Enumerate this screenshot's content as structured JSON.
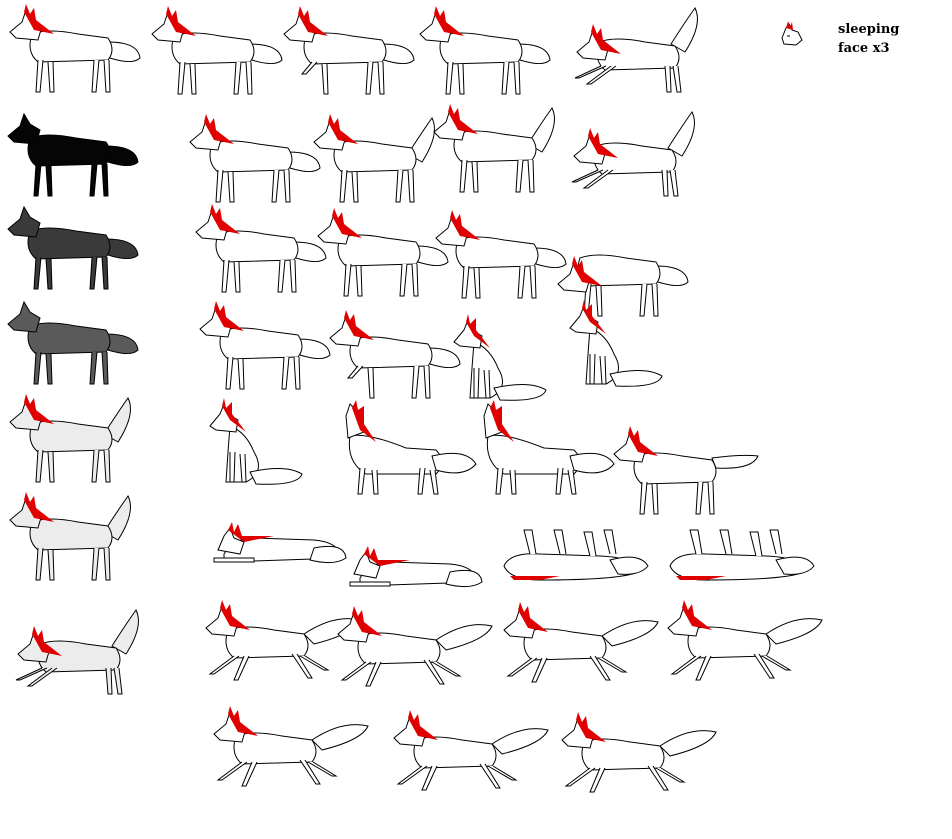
{
  "note": {
    "line1": "sleeping",
    "line2": "face x3"
  },
  "colors": {
    "outline": "#000000",
    "mane": "#e00000",
    "fill_white": "#ffffff",
    "fill_light": "#ececec",
    "fill_mid": "#5a5a5a",
    "fill_dark": "#3a3a3a",
    "fill_black": "#050505"
  },
  "sprites": [
    {
      "pose": "stand",
      "fill": "#ffffff",
      "mane": true
    },
    {
      "pose": "stand",
      "fill": "#ffffff",
      "mane": true
    },
    {
      "pose": "step",
      "fill": "#ffffff",
      "mane": true
    },
    {
      "pose": "stand",
      "fill": "#ffffff",
      "mane": true
    },
    {
      "pose": "play",
      "fill": "#ffffff",
      "mane": true
    },
    {
      "pose": "stand",
      "fill": "#050505",
      "mane": false
    },
    {
      "pose": "stand",
      "fill": "#ffffff",
      "mane": true
    },
    {
      "pose": "tailup",
      "fill": "#ffffff",
      "mane": true
    },
    {
      "pose": "tailup",
      "fill": "#ffffff",
      "mane": true
    },
    {
      "pose": "play",
      "fill": "#ffffff",
      "mane": true
    },
    {
      "pose": "stand",
      "fill": "#3a3a3a",
      "mane": false
    },
    {
      "pose": "stand",
      "fill": "#ffffff",
      "mane": true
    },
    {
      "pose": "stand",
      "fill": "#ffffff",
      "mane": true
    },
    {
      "pose": "stand",
      "fill": "#ffffff",
      "mane": true
    },
    {
      "pose": "sniff",
      "fill": "#ffffff",
      "mane": true
    },
    {
      "pose": "stand",
      "fill": "#5a5a5a",
      "mane": false
    },
    {
      "pose": "stand",
      "fill": "#ffffff",
      "mane": true
    },
    {
      "pose": "step",
      "fill": "#ffffff",
      "mane": true
    },
    {
      "pose": "sit",
      "fill": "#ffffff",
      "mane": true
    },
    {
      "pose": "sit",
      "fill": "#ffffff",
      "mane": true
    },
    {
      "pose": "tailup",
      "fill": "#ececec",
      "mane": true
    },
    {
      "pose": "sit",
      "fill": "#ffffff",
      "mane": true
    },
    {
      "pose": "howl",
      "fill": "#ffffff",
      "mane": true
    },
    {
      "pose": "howl",
      "fill": "#ffffff",
      "mane": true
    },
    {
      "pose": "stretch",
      "fill": "#ffffff",
      "mane": true
    },
    {
      "pose": "tailup",
      "fill": "#ececec",
      "mane": true
    },
    {
      "pose": "lie",
      "fill": "#ffffff",
      "mane": true
    },
    {
      "pose": "lie",
      "fill": "#ffffff",
      "mane": true
    },
    {
      "pose": "roll",
      "fill": "#ffffff",
      "mane": true
    },
    {
      "pose": "roll",
      "fill": "#ffffff",
      "mane": true
    },
    {
      "pose": "play",
      "fill": "#ececec",
      "mane": true
    },
    {
      "pose": "run",
      "fill": "#ffffff",
      "mane": true
    },
    {
      "pose": "run",
      "fill": "#ffffff",
      "mane": true
    },
    {
      "pose": "run",
      "fill": "#ffffff",
      "mane": true
    },
    {
      "pose": "run",
      "fill": "#ffffff",
      "mane": true
    },
    {
      "pose": "run",
      "fill": "#ffffff",
      "mane": true
    },
    {
      "pose": "run",
      "fill": "#ffffff",
      "mane": true
    },
    {
      "pose": "run",
      "fill": "#ffffff",
      "mane": true
    }
  ]
}
